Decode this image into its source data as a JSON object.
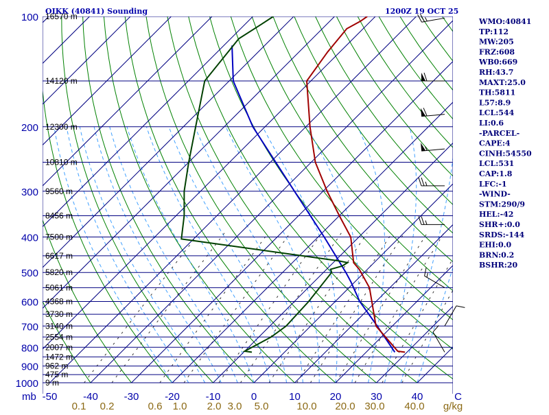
{
  "chart_data": {
    "type": "skew-t sounding",
    "title": "OIKK (40841) Sounding",
    "valid_time": "1200Z 19 OCT 25",
    "pressure_axis": {
      "labels": [
        "100",
        "200",
        "300",
        "400",
        "500",
        "600",
        "700",
        "800",
        "900",
        "1000"
      ],
      "unit_label": "mb",
      "range_hpa": [
        1000,
        100
      ],
      "scale": "log"
    },
    "temperature_axis": {
      "labels": [
        "-50",
        "-40",
        "-30",
        "-20",
        "-10",
        "0",
        "10",
        "20",
        "30",
        "40"
      ],
      "unit_label": "C",
      "range_c": [
        -50,
        50
      ]
    },
    "mixing_ratio_axis": {
      "labels": [
        "0.1",
        "0.2",
        "0.6",
        "1.0",
        "2.0",
        "3.0",
        "5.0",
        "10.0",
        "20.0",
        "30.0",
        "40.0"
      ],
      "unit_label": "g/kg"
    },
    "height_levels": [
      {
        "p": 100,
        "label": "16570 m"
      },
      {
        "p": 150,
        "label": "14120 m"
      },
      {
        "p": 200,
        "label": "12300 m"
      },
      {
        "p": 250,
        "label": "10810 m"
      },
      {
        "p": 300,
        "label": "9560 m"
      },
      {
        "p": 350,
        "label": "8456 m"
      },
      {
        "p": 400,
        "label": "7500 m"
      },
      {
        "p": 450,
        "label": "6617 m"
      },
      {
        "p": 500,
        "label": "5820 m"
      },
      {
        "p": 550,
        "label": "5061 m"
      },
      {
        "p": 600,
        "label": "4368 m"
      },
      {
        "p": 650,
        "label": "3730 m"
      },
      {
        "p": 700,
        "label": "3140 m"
      },
      {
        "p": 750,
        "label": "2554 m"
      },
      {
        "p": 800,
        "label": "2007 m"
      },
      {
        "p": 850,
        "label": "1472 m"
      },
      {
        "p": 900,
        "label": "962 m"
      },
      {
        "p": 950,
        "label": "475 m"
      },
      {
        "p": 1000,
        "label": "9 m"
      }
    ],
    "temperature_profile": [
      {
        "p": 825,
        "t": 29.5
      },
      {
        "p": 820,
        "t": 27.5
      },
      {
        "p": 700,
        "t": 16
      },
      {
        "p": 550,
        "t": 5
      },
      {
        "p": 490,
        "t": -2
      },
      {
        "p": 470,
        "t": -5
      },
      {
        "p": 400,
        "t": -12
      },
      {
        "p": 350,
        "t": -20
      },
      {
        "p": 300,
        "t": -29
      },
      {
        "p": 250,
        "t": -39
      },
      {
        "p": 200,
        "t": -49
      },
      {
        "p": 150,
        "t": -61
      },
      {
        "p": 125,
        "t": -63
      },
      {
        "p": 108,
        "t": -64
      },
      {
        "p": 103,
        "t": -62.5
      },
      {
        "p": 100,
        "t": -62
      }
    ],
    "dewpoint_profile": [
      {
        "p": 825,
        "t": -8
      },
      {
        "p": 820,
        "t": -10
      },
      {
        "p": 750,
        "t": -7
      },
      {
        "p": 700,
        "t": -6
      },
      {
        "p": 600,
        "t": -6.5
      },
      {
        "p": 500,
        "t": -8
      },
      {
        "p": 490,
        "t": -9
      },
      {
        "p": 480,
        "t": -7
      },
      {
        "p": 470,
        "t": -6.5
      },
      {
        "p": 465,
        "t": -9
      },
      {
        "p": 405,
        "t": -53
      },
      {
        "p": 350,
        "t": -58
      },
      {
        "p": 300,
        "t": -64
      },
      {
        "p": 250,
        "t": -70
      },
      {
        "p": 200,
        "t": -77
      },
      {
        "p": 150,
        "t": -86
      },
      {
        "p": 115,
        "t": -88
      },
      {
        "p": 105,
        "t": -86
      },
      {
        "p": 100,
        "t": -85
      }
    ],
    "parcel_profile": [
      {
        "p": 825,
        "t": 27
      },
      {
        "p": 700,
        "t": 16.3
      },
      {
        "p": 600,
        "t": 6
      },
      {
        "p": 530,
        "t": -1
      },
      {
        "p": 500,
        "t": -4.5
      },
      {
        "p": 400,
        "t": -18.5
      },
      {
        "p": 300,
        "t": -37
      },
      {
        "p": 200,
        "t": -63
      },
      {
        "p": 150,
        "t": -79
      },
      {
        "p": 120,
        "t": -88
      }
    ],
    "indices": [
      "WMO:40841",
      "TP:112",
      "MW:205",
      "FRZ:608",
      "WB0:669",
      "RH:43.7",
      "MAXT:25.0",
      "TH:5811",
      "L57:8.9",
      "LCL:544",
      "LI:0.6",
      "-PARCEL-",
      "CAPE:4",
      "CINH:54550",
      "LCL:531",
      "CAP:1.8",
      "LFC:-1",
      "-WIND-",
      "STM:290/9",
      "HEL:-42",
      "SHR+:0.0",
      "SRDS:-144",
      "EHI:0.0",
      "BRN:0.2",
      "BSHR:20"
    ],
    "winds": [
      {
        "p": 101,
        "dir": 260,
        "spd": 25
      },
      {
        "p": 150,
        "dir": 270,
        "spd": 60
      },
      {
        "p": 185,
        "dir": 265,
        "spd": 60
      },
      {
        "p": 230,
        "dir": 265,
        "spd": 55
      },
      {
        "p": 290,
        "dir": 270,
        "spd": 25
      },
      {
        "p": 370,
        "dir": 270,
        "spd": 25
      },
      {
        "p": 550,
        "dir": 300,
        "spd": 15
      },
      {
        "p": 700,
        "dir": 30,
        "spd": 10
      },
      {
        "p": 825,
        "dir": 330,
        "spd": 10
      }
    ],
    "colors": {
      "background": "#ffffff",
      "isobar": "#000080",
      "isotherm": "#000080",
      "dry_adiabat": "#008000",
      "moist_adiabat": "#40a0ff",
      "mixing_ratio": "#333333",
      "temperature": "#a00000",
      "dewpoint": "#004000",
      "parcel": "#0000c0",
      "header": "#0000aa",
      "indices": "#00007a",
      "mixing_label": "#8b6914"
    }
  }
}
